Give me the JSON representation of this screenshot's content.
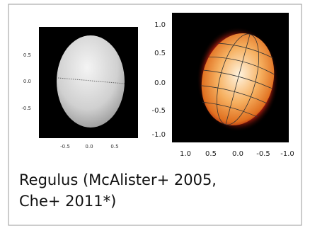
{
  "left_panel": {
    "yticks": [
      "0.5",
      "0.0",
      "-0.5"
    ],
    "xticks": [
      "-0.5",
      "0.0",
      "0.5"
    ]
  },
  "right_panel": {
    "yticks": [
      "1.0",
      "0.5",
      "0.0",
      "-0.5",
      "-1.0"
    ],
    "xticks": [
      "1.0",
      "0.5",
      "0.0",
      "-0.5",
      "-1.0"
    ]
  },
  "caption": {
    "lines": [
      "Regulus (McAlister+ 2005,",
      "Che+ 2011*)"
    ]
  }
}
